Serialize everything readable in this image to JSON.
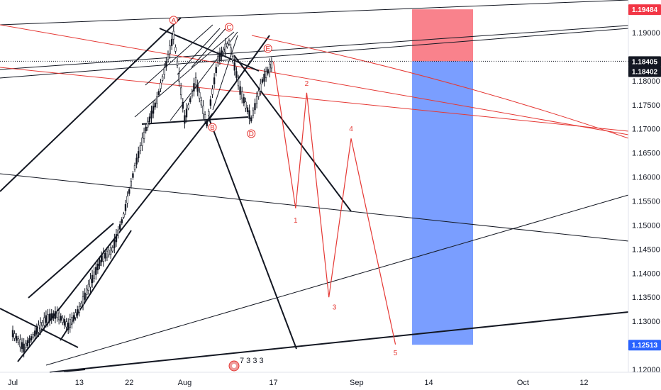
{
  "chart_data": {
    "type": "candlestick",
    "symbol": "EURUSD",
    "price_axis": {
      "min": 1.118,
      "max": 1.1975,
      "ticks": [
        "1.19000",
        "1.18000",
        "1.17500",
        "1.17000",
        "1.16500",
        "1.16000",
        "1.15500",
        "1.15000",
        "1.14500",
        "1.14000",
        "1.13500",
        "1.13000",
        "1.12000"
      ]
    },
    "time_axis": {
      "start": "2025-07-01",
      "end": "2025-10-20",
      "ticks": [
        {
          "label": "Jul",
          "date": "2025-07-01"
        },
        {
          "label": "13",
          "date": "2025-07-13"
        },
        {
          "label": "22",
          "date": "2025-07-22"
        },
        {
          "label": "Aug",
          "date": "2025-08-01"
        },
        {
          "label": "17",
          "date": "2025-08-17"
        },
        {
          "label": "Sep",
          "date": "2025-09-01"
        },
        {
          "label": "14",
          "date": "2025-09-14"
        },
        {
          "label": "Oct",
          "date": "2025-10-01"
        },
        {
          "label": "12",
          "date": "2025-10-12"
        }
      ]
    },
    "price_labels": [
      {
        "text": "1.19484",
        "value": 1.19484,
        "color": "#f23645"
      },
      {
        "text": "1.18405",
        "value": 1.18405,
        "color": "#131722"
      },
      {
        "text": "1.18402",
        "value": 1.18402,
        "color": "#131722"
      },
      {
        "text": "1.12513",
        "value": 1.12513,
        "color": "#2962ff"
      }
    ],
    "current_price": 1.18405,
    "position": {
      "entry": 1.18405,
      "stop": 1.19484,
      "target": 1.12513,
      "from": "2025-09-11",
      "to": "2025-09-22"
    },
    "candles_sampled": [
      {
        "date": "2025-07-01",
        "price": 1.1275
      },
      {
        "date": "2025-07-03",
        "price": 1.1245
      },
      {
        "date": "2025-07-05",
        "price": 1.1275
      },
      {
        "date": "2025-07-07",
        "price": 1.1305
      },
      {
        "date": "2025-07-09",
        "price": 1.1315
      },
      {
        "date": "2025-07-11",
        "price": 1.129
      },
      {
        "date": "2025-07-13",
        "price": 1.1325
      },
      {
        "date": "2025-07-15",
        "price": 1.138
      },
      {
        "date": "2025-07-17",
        "price": 1.143
      },
      {
        "date": "2025-07-19",
        "price": 1.145
      },
      {
        "date": "2025-07-21",
        "price": 1.152
      },
      {
        "date": "2025-07-23",
        "price": 1.162
      },
      {
        "date": "2025-07-25",
        "price": 1.17
      },
      {
        "date": "2025-07-27",
        "price": 1.176
      },
      {
        "date": "2025-07-29",
        "price": 1.185
      },
      {
        "date": "2025-07-30",
        "price": 1.1895
      },
      {
        "date": "2025-08-01",
        "price": 1.172
      },
      {
        "date": "2025-08-03",
        "price": 1.18
      },
      {
        "date": "2025-08-05",
        "price": 1.171
      },
      {
        "date": "2025-08-07",
        "price": 1.1845
      },
      {
        "date": "2025-08-09",
        "price": 1.188
      },
      {
        "date": "2025-08-11",
        "price": 1.178
      },
      {
        "date": "2025-08-13",
        "price": 1.172
      },
      {
        "date": "2025-08-15",
        "price": 1.18
      },
      {
        "date": "2025-08-17",
        "price": 1.184
      }
    ],
    "elliott_labels": [
      {
        "text": "A",
        "circled": true,
        "date": "2025-07-30",
        "price": 1.1926
      },
      {
        "text": "B",
        "circled": true,
        "date": "2025-08-06",
        "price": 1.1703
      },
      {
        "text": "C",
        "circled": true,
        "date": "2025-08-09",
        "price": 1.1911
      },
      {
        "text": "D",
        "circled": true,
        "date": "2025-08-13",
        "price": 1.169
      },
      {
        "text": "E",
        "circled": true,
        "date": "2025-08-16",
        "price": 1.1867
      },
      {
        "text": "1",
        "circled": false,
        "date": "2025-08-21",
        "price": 1.151
      },
      {
        "text": "2",
        "circled": false,
        "date": "2025-08-23",
        "price": 1.1795
      },
      {
        "text": "3",
        "circled": false,
        "date": "2025-08-28",
        "price": 1.133
      },
      {
        "text": "4",
        "circled": false,
        "date": "2025-08-31",
        "price": 1.17
      },
      {
        "text": "5",
        "circled": false,
        "date": "2025-09-08",
        "price": 1.1235
      }
    ],
    "projection_path": [
      {
        "date": "2025-08-17",
        "price": 1.184
      },
      {
        "date": "2025-08-21",
        "price": 1.1535
      },
      {
        "date": "2025-08-23",
        "price": 1.1775
      },
      {
        "date": "2025-08-27",
        "price": 1.135
      },
      {
        "date": "2025-08-31",
        "price": 1.168
      },
      {
        "date": "2025-09-08",
        "price": 1.1252
      }
    ],
    "event_marker": {
      "text": "7 3 3 3"
    }
  }
}
